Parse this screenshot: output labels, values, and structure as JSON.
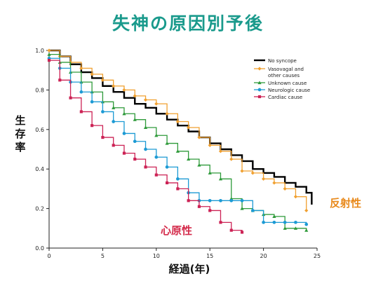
{
  "title": "失神の原因別予後",
  "chart_data": {
    "type": "line",
    "ylabel": "生存率",
    "xlabel": "経過(年)",
    "xlim": [
      0,
      25
    ],
    "ylim": [
      0.0,
      1.0
    ],
    "xticks": [
      0,
      5,
      10,
      15,
      20,
      25
    ],
    "yticks": [
      "0.0",
      "0.2",
      "0.4",
      "0.6",
      "0.8",
      "1.0"
    ],
    "legend_position": "top-right",
    "annotations": {
      "vasovagal": "反射性",
      "cardiac": "心原性"
    },
    "series": [
      {
        "name": "No syncope",
        "color": "#000000",
        "marker": "none",
        "x": [
          0,
          1,
          2,
          3,
          4,
          5,
          6,
          7,
          8,
          9,
          10,
          11,
          12,
          13,
          14,
          15,
          16,
          17,
          18,
          19,
          20,
          21,
          22,
          23,
          24,
          24.5
        ],
        "y": [
          1.0,
          0.97,
          0.93,
          0.89,
          0.86,
          0.82,
          0.79,
          0.76,
          0.73,
          0.71,
          0.68,
          0.65,
          0.62,
          0.59,
          0.56,
          0.53,
          0.5,
          0.47,
          0.44,
          0.4,
          0.38,
          0.36,
          0.33,
          0.31,
          0.28,
          0.22
        ]
      },
      {
        "name": "Vasovagal and other causes",
        "color": "#f0a030",
        "marker": "diamond",
        "x": [
          0,
          1,
          2,
          3,
          4,
          5,
          6,
          7,
          8,
          9,
          10,
          11,
          12,
          13,
          14,
          15,
          16,
          17,
          18,
          19,
          20,
          21,
          22,
          23,
          24
        ],
        "y": [
          1.0,
          0.97,
          0.94,
          0.91,
          0.88,
          0.85,
          0.82,
          0.8,
          0.77,
          0.75,
          0.73,
          0.68,
          0.64,
          0.61,
          0.56,
          0.52,
          0.49,
          0.45,
          0.39,
          0.38,
          0.35,
          0.33,
          0.3,
          0.26,
          0.19
        ]
      },
      {
        "name": "Unknown cause",
        "color": "#2e9a3a",
        "marker": "triangle",
        "x": [
          0,
          1,
          2,
          3,
          4,
          5,
          6,
          7,
          8,
          9,
          10,
          11,
          12,
          13,
          14,
          15,
          16,
          17,
          18,
          19,
          20,
          21,
          22,
          23,
          24
        ],
        "y": [
          0.98,
          0.94,
          0.89,
          0.84,
          0.79,
          0.74,
          0.71,
          0.68,
          0.65,
          0.61,
          0.57,
          0.53,
          0.49,
          0.45,
          0.42,
          0.38,
          0.35,
          0.25,
          0.2,
          0.19,
          0.17,
          0.16,
          0.1,
          0.1,
          0.09
        ]
      },
      {
        "name": "Neurologic cause",
        "color": "#1c9ad4",
        "marker": "circle",
        "x": [
          0,
          1,
          2,
          3,
          4,
          5,
          6,
          7,
          8,
          9,
          10,
          11,
          12,
          13,
          14,
          15,
          16,
          17,
          18,
          19,
          20,
          21,
          22,
          23,
          24
        ],
        "y": [
          0.96,
          0.91,
          0.84,
          0.79,
          0.74,
          0.69,
          0.64,
          0.58,
          0.54,
          0.5,
          0.46,
          0.41,
          0.35,
          0.28,
          0.24,
          0.24,
          0.24,
          0.24,
          0.24,
          0.19,
          0.13,
          0.13,
          0.13,
          0.13,
          0.12
        ]
      },
      {
        "name": "Cardiac cause",
        "color": "#cc2255",
        "marker": "square",
        "x": [
          0,
          1,
          2,
          3,
          4,
          5,
          6,
          7,
          8,
          9,
          10,
          11,
          12,
          13,
          14,
          15,
          16,
          17,
          18
        ],
        "y": [
          0.95,
          0.85,
          0.76,
          0.69,
          0.62,
          0.56,
          0.52,
          0.48,
          0.45,
          0.41,
          0.37,
          0.33,
          0.3,
          0.24,
          0.21,
          0.19,
          0.13,
          0.09,
          0.08
        ]
      }
    ]
  }
}
